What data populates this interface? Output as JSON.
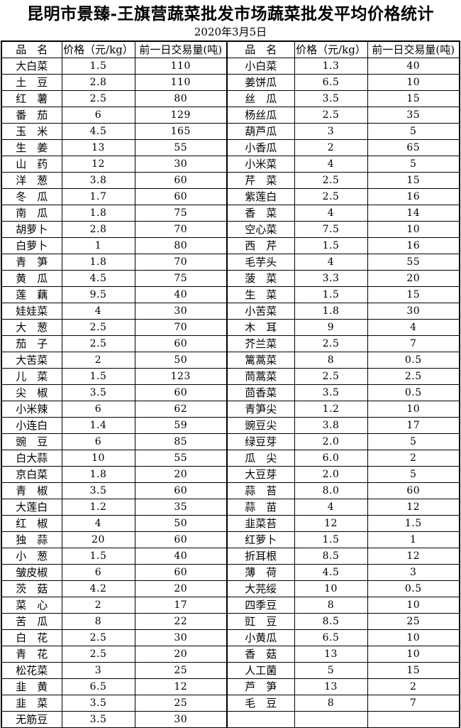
{
  "page": {
    "title": "昆明市景臻-王旗营蔬菜批发市场蔬菜批发平均价格统计",
    "date": "2020年3月5日"
  },
  "table": {
    "headers": [
      "品　名",
      "价格（元/kg）",
      "前一日交易量(吨)",
      "品　名",
      "价格（元/kg）",
      "前一日交易量(吨)"
    ],
    "rows": [
      [
        "大白菜",
        "1.5",
        "110",
        "小白菜",
        "1.3",
        "40"
      ],
      [
        "土　豆",
        "2.8",
        "110",
        "姜饼瓜",
        "6.5",
        "10"
      ],
      [
        "红　薯",
        "2.5",
        "80",
        "丝　瓜",
        "3.5",
        "15"
      ],
      [
        "番　茄",
        "6",
        "129",
        "杨丝瓜",
        "2.5",
        "35"
      ],
      [
        "玉　米",
        "4.5",
        "165",
        "葫芦瓜",
        "3",
        "5"
      ],
      [
        "生　姜",
        "13",
        "55",
        "小香瓜",
        "2",
        "65"
      ],
      [
        "山　药",
        "12",
        "30",
        "小米菜",
        "4",
        "5"
      ],
      [
        "洋　葱",
        "3.8",
        "60",
        "芹　菜",
        "2.5",
        "15"
      ],
      [
        "冬　瓜",
        "1.7",
        "60",
        "紫莲白",
        "2.5",
        "16"
      ],
      [
        "南　瓜",
        "1.8",
        "75",
        "香　菜",
        "4",
        "14"
      ],
      [
        "胡萝卜",
        "2.8",
        "70",
        "空心菜",
        "7.5",
        "10"
      ],
      [
        "白萝卜",
        "1",
        "80",
        "西　芹",
        "1.5",
        "16"
      ],
      [
        "青　笋",
        "1.8",
        "70",
        "毛芋头",
        "4",
        "55"
      ],
      [
        "黄　瓜",
        "4.5",
        "75",
        "菠　菜",
        "3.3",
        "20"
      ],
      [
        "莲　藕",
        "9.5",
        "40",
        "生　菜",
        "1.5",
        "15"
      ],
      [
        "娃娃菜",
        "4",
        "30",
        "小苦菜",
        "1.8",
        "30"
      ],
      [
        "大　葱",
        "2.5",
        "70",
        "木　耳",
        "9",
        "4"
      ],
      [
        "茄　子",
        "2.5",
        "60",
        "芥兰菜",
        "2.5",
        "7"
      ],
      [
        "大苦菜",
        "2",
        "50",
        "篱蒿菜",
        "8",
        "0.5"
      ],
      [
        "儿　菜",
        "1.5",
        "123",
        "茼蒿菜",
        "2.5",
        "2.5"
      ],
      [
        "尖　椒",
        "3.5",
        "60",
        "茴香菜",
        "3.5",
        "0.5"
      ],
      [
        "小米辣",
        "6",
        "62",
        "青笋尖",
        "1.2",
        "10"
      ],
      [
        "小连白",
        "1.4",
        "59",
        "豌豆尖",
        "3.8",
        "17"
      ],
      [
        "豌　豆",
        "6",
        "85",
        "绿豆芽",
        "2.0",
        "5"
      ],
      [
        "白大蒜",
        "10",
        "55",
        "瓜　尖",
        "6.0",
        "2"
      ],
      [
        "京白菜",
        "1.8",
        "20",
        "大豆芽",
        "2.0",
        "5"
      ],
      [
        "青　椒",
        "3.5",
        "60",
        "蒜　苔",
        "8.0",
        "60"
      ],
      [
        "大莲白",
        "1.2",
        "35",
        "蒜　苗",
        "4",
        "12"
      ],
      [
        "红　椒",
        "4",
        "50",
        "韭菜苔",
        "12",
        "1.5"
      ],
      [
        "独　蒜",
        "20",
        "60",
        "红萝卜",
        "1.5",
        "1"
      ],
      [
        "小　葱",
        "1.5",
        "40",
        "折耳根",
        "8.5",
        "12"
      ],
      [
        "皱皮椒",
        "6",
        "60",
        "薄　荷",
        "4.5",
        "3"
      ],
      [
        "茨　菇",
        "4.2",
        "20",
        "大芫绥",
        "10",
        "0.5"
      ],
      [
        "菜　心",
        "2",
        "17",
        "四季豆",
        "8",
        "10"
      ],
      [
        "苦　瓜",
        "8",
        "22",
        "豇　豆",
        "8.5",
        "25"
      ],
      [
        "白　花",
        "2.5",
        "30",
        "小黄瓜",
        "6.5",
        "10"
      ],
      [
        "青　花",
        "2.5",
        "20",
        "香　菇",
        "13",
        "10"
      ],
      [
        "松花菜",
        "3",
        "25",
        "人工菌",
        "5",
        "15"
      ],
      [
        "韭　黄",
        "6.5",
        "12",
        "芦　笋",
        "13",
        "2"
      ],
      [
        "韭　菜",
        "3.5",
        "25",
        "毛　豆",
        "8",
        "7"
      ],
      [
        "无筋豆",
        "3.5",
        "30",
        "",
        "",
        ""
      ]
    ]
  }
}
